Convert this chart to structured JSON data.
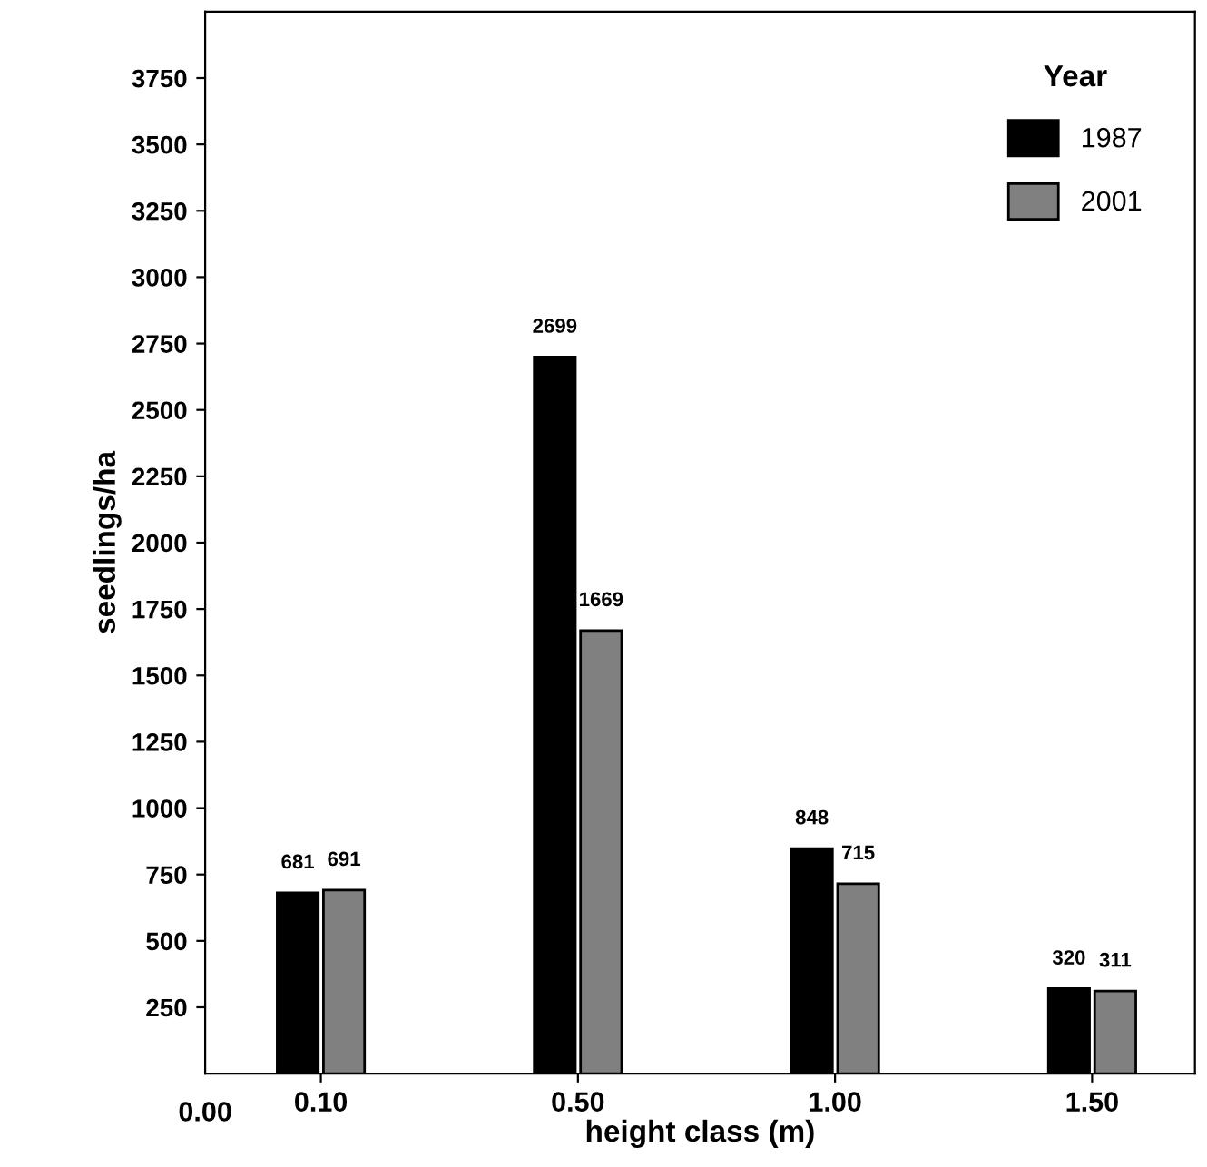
{
  "chart_data": {
    "type": "bar",
    "xlabel": "height class (m)",
    "ylabel": "seedlings/ha",
    "legend_title": "Year",
    "categories": [
      "0.10",
      "0.50",
      "1.00",
      "1.50"
    ],
    "series": [
      {
        "name": "1987",
        "color": "#000000",
        "values": [
          681,
          2699,
          848,
          320
        ]
      },
      {
        "name": "2001",
        "color": "#808080",
        "values": [
          691,
          1669,
          715,
          311
        ]
      }
    ],
    "ylim": [
      0,
      4000
    ],
    "yticks": [
      250,
      500,
      750,
      1000,
      1250,
      1500,
      1750,
      2000,
      2250,
      2500,
      2750,
      3000,
      3250,
      3500,
      3750
    ],
    "annotations": [
      "0.00"
    ],
    "data_labels": true,
    "legend": "top right",
    "grid": false
  }
}
